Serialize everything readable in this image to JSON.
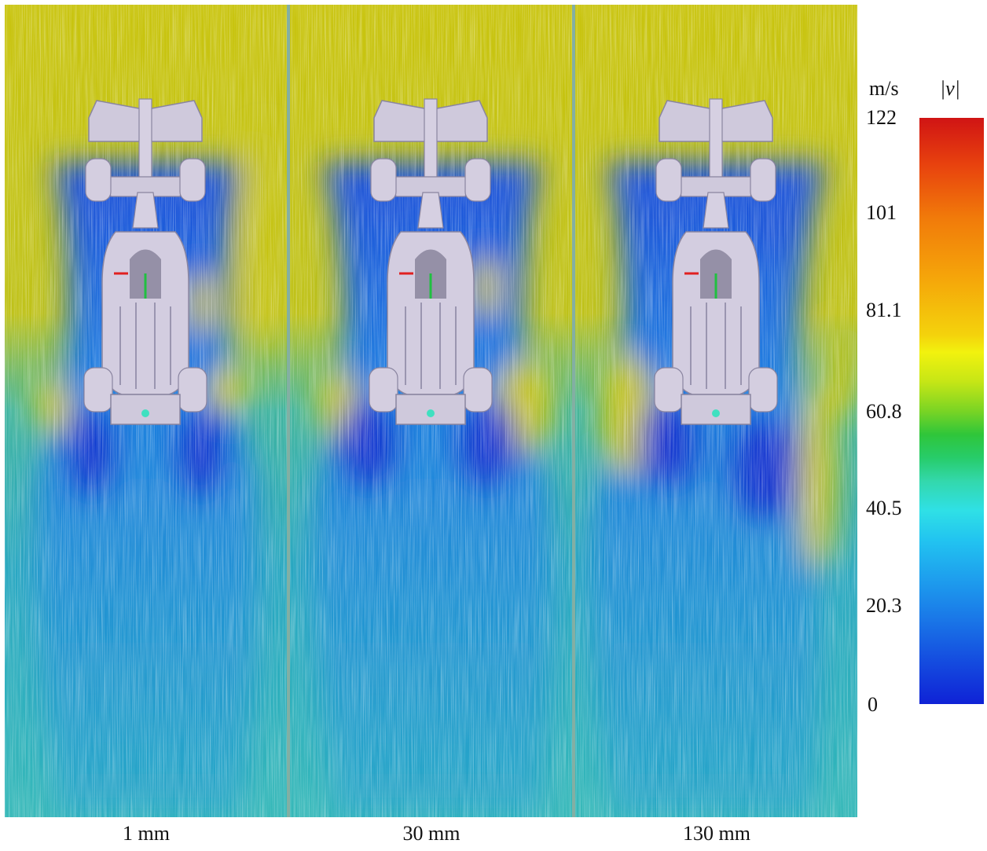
{
  "figure": {
    "panels": [
      {
        "label": "1 mm"
      },
      {
        "label": "30 mm"
      },
      {
        "label": "130 mm"
      }
    ],
    "colorbar": {
      "unit": "m/s",
      "quantity": "|v|",
      "ticks": [
        "122",
        "101",
        "81.1",
        "60.8",
        "40.5",
        "20.3",
        "0"
      ],
      "colors": [
        "#d01414",
        "#f17a0a",
        "#f2f20e",
        "#2fc63a",
        "#2fe0e6",
        "#1a7ae8",
        "#0f22d6"
      ]
    }
  }
}
